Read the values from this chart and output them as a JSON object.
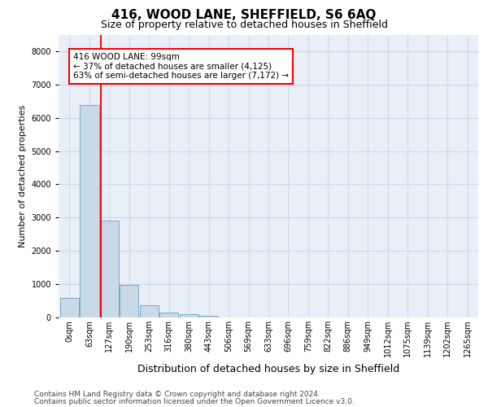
{
  "title": "416, WOOD LANE, SHEFFIELD, S6 6AQ",
  "subtitle": "Size of property relative to detached houses in Sheffield",
  "xlabel": "Distribution of detached houses by size in Sheffield",
  "ylabel": "Number of detached properties",
  "footer_line1": "Contains HM Land Registry data © Crown copyright and database right 2024.",
  "footer_line2": "Contains public sector information licensed under the Open Government Licence v3.0.",
  "bar_labels": [
    "0sqm",
    "63sqm",
    "127sqm",
    "190sqm",
    "253sqm",
    "316sqm",
    "380sqm",
    "443sqm",
    "506sqm",
    "569sqm",
    "633sqm",
    "696sqm",
    "759sqm",
    "822sqm",
    "886sqm",
    "949sqm",
    "1012sqm",
    "1075sqm",
    "1139sqm",
    "1202sqm",
    "1265sqm"
  ],
  "bar_values": [
    580,
    6380,
    2920,
    980,
    360,
    155,
    95,
    55,
    0,
    0,
    0,
    0,
    0,
    0,
    0,
    0,
    0,
    0,
    0,
    0,
    0
  ],
  "bar_color": "#c9d9e8",
  "bar_edge_color": "#7aaac8",
  "ylim": [
    0,
    8500
  ],
  "yticks": [
    0,
    1000,
    2000,
    3000,
    4000,
    5000,
    6000,
    7000,
    8000
  ],
  "red_line_x": 1.58,
  "annotation_text_line1": "416 WOOD LANE: 99sqm",
  "annotation_text_line2": "← 37% of detached houses are smaller (4,125)",
  "annotation_text_line3": "63% of semi-detached houses are larger (7,172) →",
  "grid_color": "#ccdaeb",
  "background_color": "#e8eff7",
  "fig_bg_color": "#ffffff",
  "title_fontsize": 11,
  "subtitle_fontsize": 9,
  "ylabel_fontsize": 8,
  "xlabel_fontsize": 9,
  "tick_fontsize": 7,
  "annotation_fontsize": 7.5,
  "footer_fontsize": 6.5
}
